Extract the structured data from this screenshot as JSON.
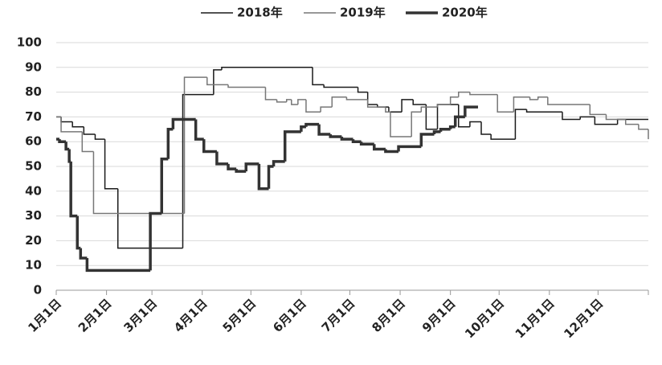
{
  "chart_data": {
    "type": "line",
    "line_shape": "step",
    "xlim": [
      0,
      365
    ],
    "xticks": [
      {
        "value": 0,
        "label": "1月1日"
      },
      {
        "value": 31,
        "label": "2月1日"
      },
      {
        "value": 59,
        "label": "3月1日"
      },
      {
        "value": 90,
        "label": "4月1日"
      },
      {
        "value": 120,
        "label": "5月1日"
      },
      {
        "value": 151,
        "label": "6月1日"
      },
      {
        "value": 181,
        "label": "7月1日"
      },
      {
        "value": 212,
        "label": "8月1日"
      },
      {
        "value": 243,
        "label": "9月1日"
      },
      {
        "value": 273,
        "label": "10月1日"
      },
      {
        "value": 304,
        "label": "11月1日"
      },
      {
        "value": 334,
        "label": "12月1日"
      }
    ],
    "ylim": [
      0,
      100
    ],
    "yticks": [
      0,
      10,
      20,
      30,
      40,
      50,
      60,
      70,
      80,
      90,
      100
    ],
    "grid": true,
    "series": [
      {
        "name": "2018年",
        "color": "#1a1a1a",
        "width": 1.5,
        "x": [
          0,
          3,
          10,
          17,
          24,
          30,
          38,
          78,
          97,
          102,
          158,
          165,
          186,
          192,
          198,
          205,
          213,
          220,
          228,
          235,
          248,
          255,
          262,
          268,
          283,
          290,
          312,
          323,
          332,
          346,
          365
        ],
        "values": [
          70,
          68,
          66,
          63,
          61,
          41,
          17,
          79,
          89,
          90,
          83,
          82,
          80,
          75,
          74,
          72,
          77,
          75,
          65,
          75,
          66,
          68,
          63,
          61,
          73,
          72,
          69,
          70,
          67,
          69,
          69
        ]
      },
      {
        "name": "2019年",
        "color": "#777777",
        "width": 1.5,
        "x": [
          0,
          3,
          16,
          23,
          79,
          93,
          106,
          129,
          136,
          142,
          145,
          149,
          154,
          163,
          170,
          179,
          192,
          203,
          206,
          219,
          225,
          235,
          243,
          248,
          255,
          272,
          282,
          292,
          297,
          303,
          329,
          339,
          351,
          359,
          365
        ],
        "values": [
          70,
          64,
          56,
          31,
          86,
          83,
          82,
          77,
          76,
          77,
          75,
          77,
          72,
          74,
          78,
          77,
          74,
          72,
          62,
          72,
          74,
          75,
          78,
          80,
          79,
          72,
          78,
          77,
          78,
          75,
          71,
          69,
          67,
          65,
          61
        ]
      },
      {
        "name": "2020年",
        "color": "#333333",
        "width": 3.5,
        "x": [
          0,
          2,
          6,
          8,
          9,
          13,
          15,
          19,
          58,
          65,
          69,
          72,
          86,
          91,
          99,
          106,
          111,
          117,
          125,
          131,
          134,
          141,
          151,
          154,
          162,
          169,
          176,
          183,
          188,
          196,
          203,
          211,
          225,
          233,
          237,
          243,
          246,
          252,
          260
        ],
        "values": [
          61,
          60,
          57,
          52,
          30,
          17,
          13,
          8,
          31,
          53,
          65,
          69,
          61,
          56,
          51,
          49,
          48,
          51,
          41,
          50,
          52,
          64,
          66,
          67,
          63,
          62,
          61,
          60,
          59,
          57,
          56,
          58,
          63,
          64,
          65,
          66,
          70,
          74,
          74
        ]
      }
    ]
  }
}
